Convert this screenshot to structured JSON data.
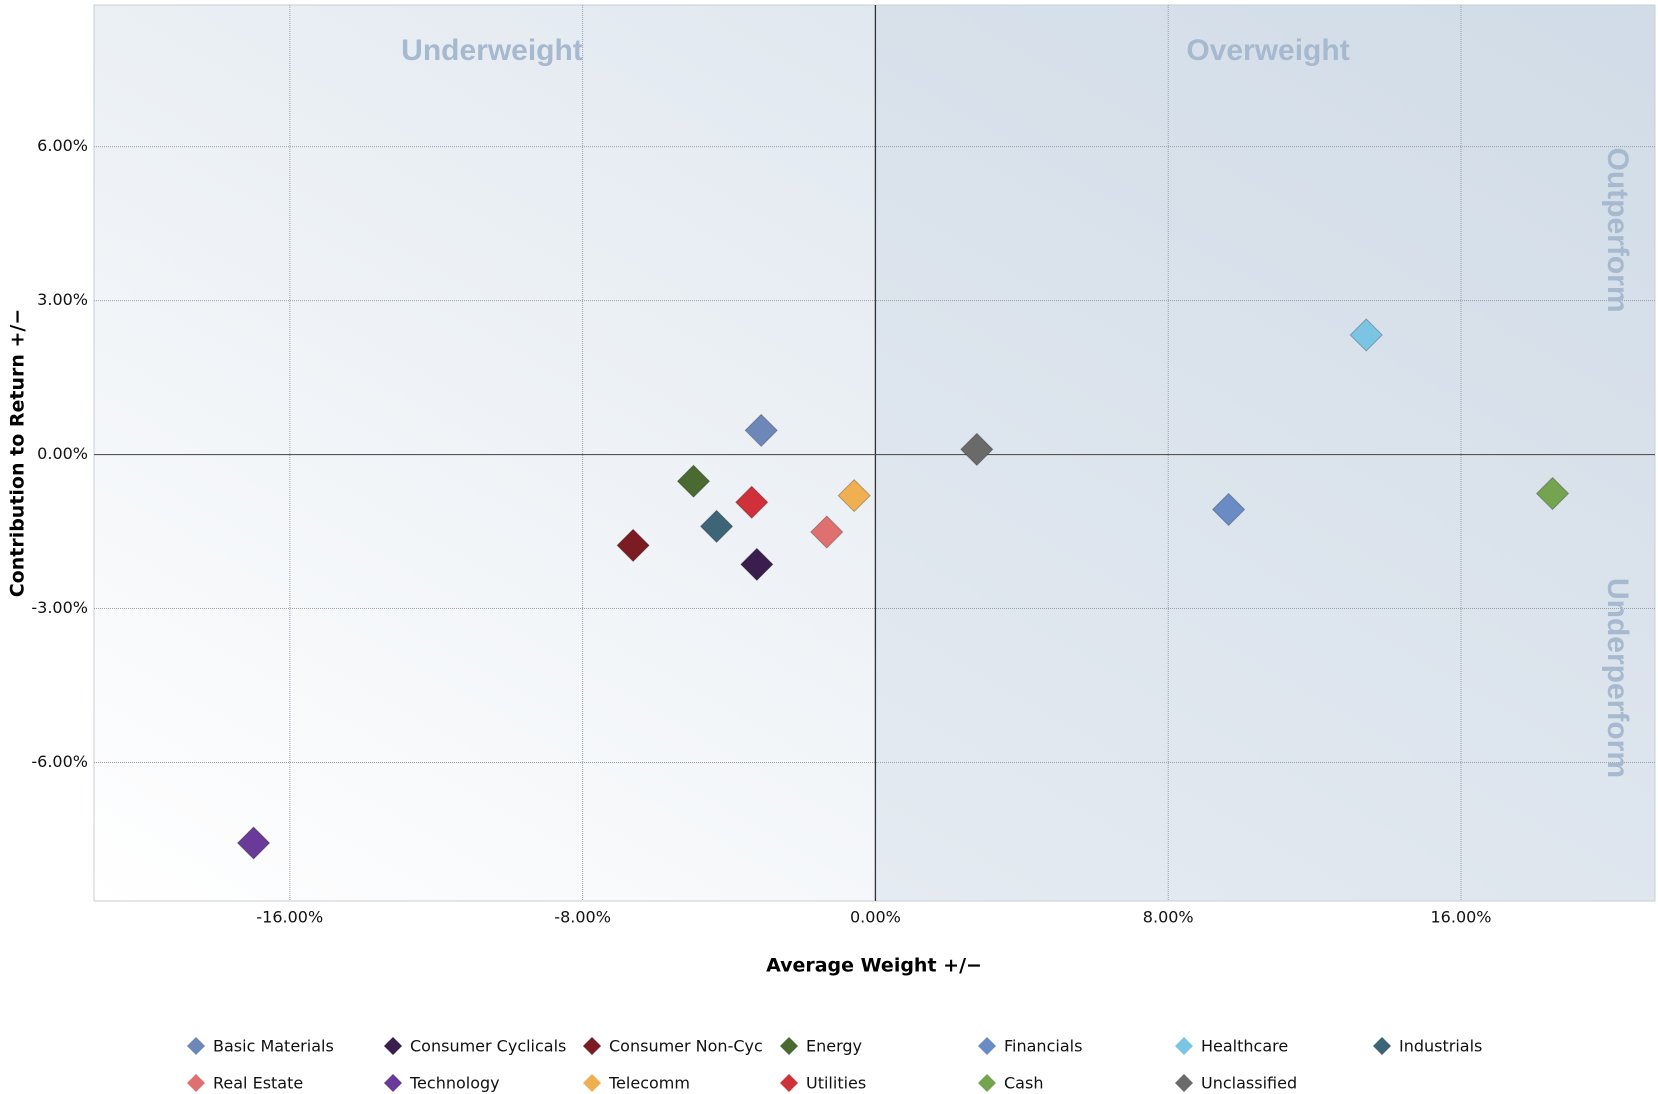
{
  "chart_data": {
    "type": "scatter",
    "x_label": "Average Weight +/−",
    "y_label": "Contribution to Return +/−",
    "annotations": [
      "Underweight",
      "Overweight",
      "Outperform",
      "Underperform"
    ],
    "xlim": [
      -21.35,
      21.3
    ],
    "ylim": [
      -8.7,
      8.76
    ],
    "xticks": [
      {
        "value": -16,
        "label": "-16.00%"
      },
      {
        "value": -8,
        "label": "-8.00%"
      },
      {
        "value": 0,
        "label": "0.00%"
      },
      {
        "value": 8,
        "label": "8.00%"
      },
      {
        "value": 16,
        "label": "16.00%"
      }
    ],
    "yticks": [
      {
        "value": -6,
        "label": "-6.00%"
      },
      {
        "value": -3,
        "label": "-3.00%"
      },
      {
        "value": 0,
        "label": "0.00%"
      },
      {
        "value": 3,
        "label": "3.00%"
      },
      {
        "value": 6,
        "label": "6.00%"
      }
    ],
    "grid": true,
    "series": [
      {
        "name": "Basic Materials",
        "color": "#6d87b8",
        "x": [
          -3.12
        ],
        "values": [
          0.47
        ]
      },
      {
        "name": "Consumer Cyclicals",
        "color": "#3a1f4e",
        "x": [
          -3.24
        ],
        "values": [
          -2.14
        ]
      },
      {
        "name": "Consumer Non-Cyc",
        "color": "#7a1c22",
        "x": [
          -6.62
        ],
        "values": [
          -1.77
        ]
      },
      {
        "name": "Energy",
        "color": "#4a6a32",
        "x": [
          -4.97
        ],
        "values": [
          -0.52
        ]
      },
      {
        "name": "Financials",
        "color": "#6a8cc4",
        "x": [
          9.65
        ],
        "values": [
          -1.07
        ]
      },
      {
        "name": "Healthcare",
        "color": "#7cc4e4",
        "x": [
          13.41
        ],
        "values": [
          2.33
        ]
      },
      {
        "name": "Industrials",
        "color": "#3e6478",
        "x": [
          -4.34
        ],
        "values": [
          -1.4
        ]
      },
      {
        "name": "Real Estate",
        "color": "#e07070",
        "x": [
          -1.33
        ],
        "values": [
          -1.51
        ]
      },
      {
        "name": "Technology",
        "color": "#6a3a9a",
        "x": [
          -16.99
        ],
        "values": [
          -7.57
        ]
      },
      {
        "name": "Telecomm",
        "color": "#eeb050",
        "x": [
          -0.58
        ],
        "values": [
          -0.8
        ]
      },
      {
        "name": "Utilities",
        "color": "#d0303a",
        "x": [
          -3.38
        ],
        "values": [
          -0.93
        ]
      },
      {
        "name": "Cash",
        "color": "#74a450",
        "x": [
          18.5
        ],
        "values": [
          -0.76
        ]
      },
      {
        "name": "Unclassified",
        "color": "#6a6a6a",
        "x": [
          2.77
        ],
        "values": [
          0.1
        ]
      }
    ]
  }
}
